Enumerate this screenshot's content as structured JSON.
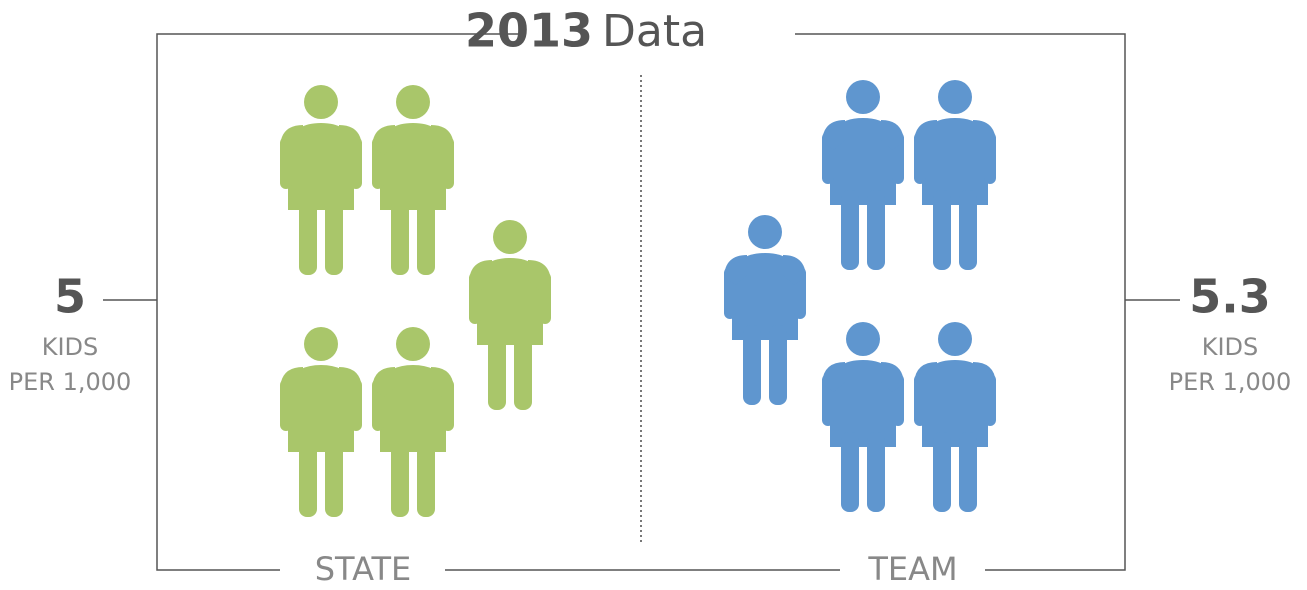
{
  "chart_data": {
    "type": "pictogram",
    "title_number": "2013",
    "title_text": "Data",
    "categories": [
      "STATE",
      "TEAM"
    ],
    "values": [
      5,
      5.3
    ],
    "unit_lines": [
      "KIDS",
      "PER 1,000"
    ],
    "colors": [
      "#a9c66a",
      "#5f96cf"
    ]
  }
}
